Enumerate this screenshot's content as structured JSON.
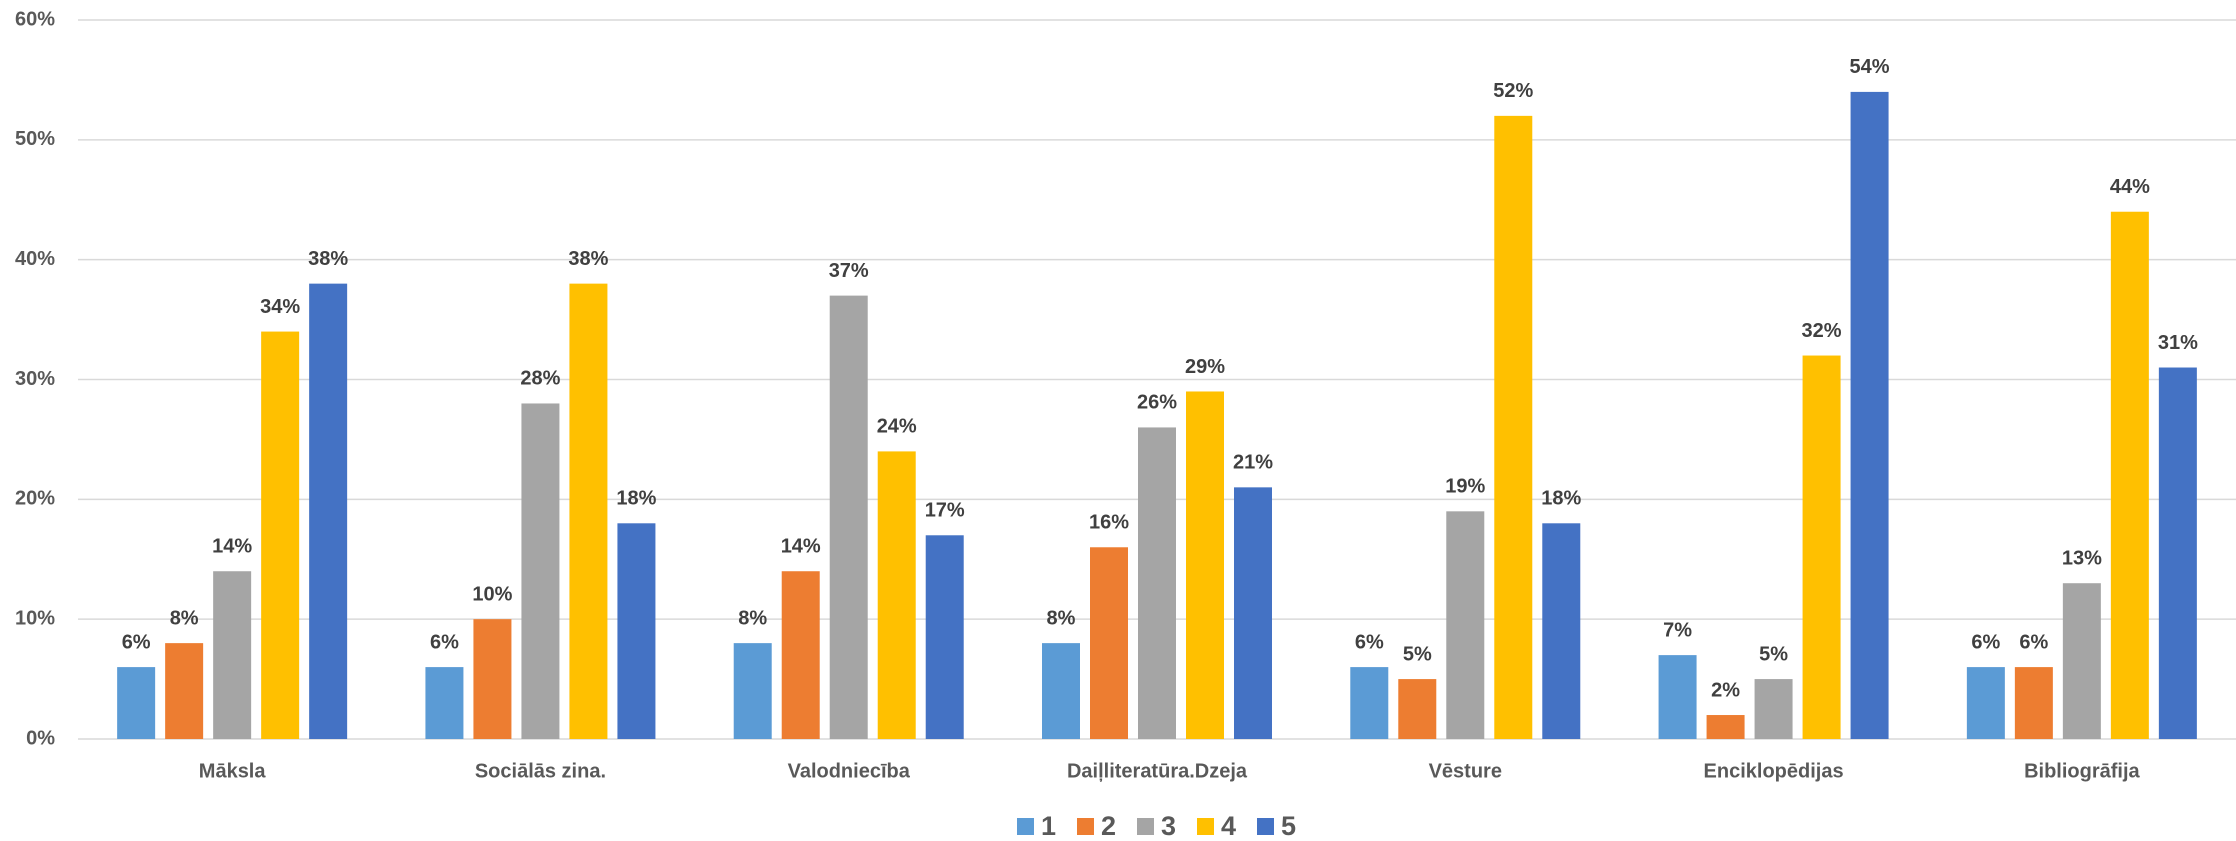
{
  "chart_data": {
    "type": "bar",
    "categories": [
      "Māksla",
      "Sociālās zina.",
      "Valodniecība",
      "Daiļliteratūra.Dzeja",
      "Vēsture",
      "Enciklopēdijas",
      "Bibliogrāfija"
    ],
    "series": [
      {
        "name": "1",
        "color": "#5b9bd5",
        "values": [
          6,
          6,
          8,
          8,
          6,
          7,
          6
        ],
        "value_labels": [
          "6%",
          "6%",
          "8%",
          "8%",
          "6%",
          "7%",
          "6%"
        ]
      },
      {
        "name": "2",
        "color": "#ed7d31",
        "values": [
          8,
          10,
          14,
          16,
          5,
          2,
          6
        ],
        "value_labels": [
          "8%",
          "10%",
          "14%",
          "16%",
          "5%",
          "2%",
          "6%"
        ]
      },
      {
        "name": "3",
        "color": "#a5a5a5",
        "values": [
          14,
          28,
          37,
          26,
          19,
          5,
          13
        ],
        "value_labels": [
          "14%",
          "28%",
          "37%",
          "26%",
          "19%",
          "5%",
          "13%"
        ]
      },
      {
        "name": "4",
        "color": "#ffc000",
        "values": [
          34,
          38,
          24,
          29,
          52,
          32,
          44
        ],
        "value_labels": [
          "34%",
          "38%",
          "24%",
          "29%",
          "52%",
          "32%",
          "44%"
        ]
      },
      {
        "name": "5",
        "color": "#4472c4",
        "values": [
          38,
          18,
          17,
          21,
          18,
          54,
          31
        ],
        "value_labels": [
          "38%",
          "18%",
          "17%",
          "21%",
          "18%",
          "54%",
          "31%"
        ]
      }
    ],
    "ylim": [
      0,
      60
    ],
    "yticks": [
      {
        "value": 0,
        "label": "0%"
      },
      {
        "value": 10,
        "label": "10%"
      },
      {
        "value": 20,
        "label": "20%"
      },
      {
        "value": 30,
        "label": "30%"
      },
      {
        "value": 40,
        "label": "40%"
      },
      {
        "value": 50,
        "label": "50%"
      },
      {
        "value": 60,
        "label": "60%"
      }
    ],
    "grid": true,
    "legend": "bottom"
  }
}
